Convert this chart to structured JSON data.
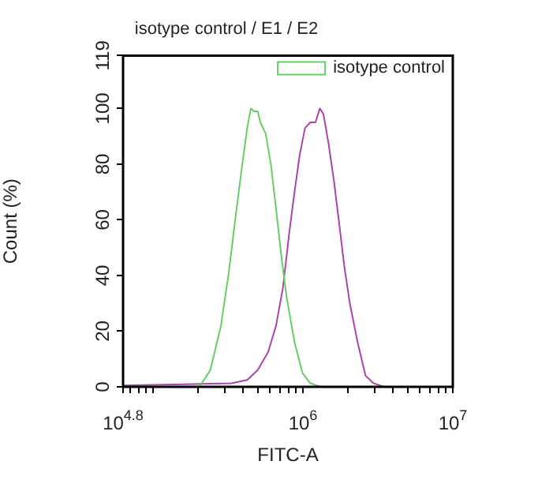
{
  "chart_data": {
    "type": "line",
    "title": "isotype control / E1 / E2",
    "xlabel": "FITC-A",
    "ylabel": "Count (%)",
    "log": "x",
    "grid": false,
    "legend": "top right",
    "marker": "none",
    "line_style": "solid",
    "xlim": [
      63096,
      10000000
    ],
    "xticks": [
      {
        "value": 63096,
        "label": "10$^{4.8}$"
      },
      {
        "value": 70000,
        "label": null
      },
      {
        "value": 80000,
        "label": null
      },
      {
        "value": 90000,
        "label": null
      },
      {
        "value": 100000,
        "label": null
      },
      {
        "value": 200000,
        "label": null
      },
      {
        "value": 300000,
        "label": null
      },
      {
        "value": 400000,
        "label": null
      },
      {
        "value": 500000,
        "label": null
      },
      {
        "value": 600000,
        "label": null
      },
      {
        "value": 700000,
        "label": null
      },
      {
        "value": 800000,
        "label": null
      },
      {
        "value": 900000,
        "label": null
      },
      {
        "value": 1000000,
        "label": "10$^{6}$"
      },
      {
        "value": 2000000,
        "label": null
      },
      {
        "value": 3000000,
        "label": null
      },
      {
        "value": 4000000,
        "label": null
      },
      {
        "value": 5000000,
        "label": null
      },
      {
        "value": 6000000,
        "label": null
      },
      {
        "value": 7000000,
        "label": null
      },
      {
        "value": 8000000,
        "label": null
      },
      {
        "value": 9000000,
        "label": null
      },
      {
        "value": 10000000,
        "label": "10$^{7}$"
      }
    ],
    "ylim": [
      0,
      119
    ],
    "yticks": [
      0,
      20,
      40,
      60,
      80,
      100,
      119
    ],
    "series": [
      {
        "name": "isotype control",
        "color": "#66cc66",
        "x": [
          206000,
          241000,
          284000,
          320000,
          361000,
          392000,
          425000,
          450000,
          472000,
          499000,
          520000,
          564000,
          611000,
          662000,
          718000,
          780000,
          879000,
          993000,
          1119000,
          1315000
        ],
        "values": [
          0.4,
          6,
          22,
          41,
          64,
          79,
          93,
          100,
          99,
          99,
          95,
          91,
          80,
          64,
          47,
          32,
          16,
          5,
          1.3,
          0
        ]
      },
      {
        "color": "#aa44aa",
        "x": [
          63096,
          189000,
          333000,
          425000,
          499000,
          586000,
          662000,
          735000,
          809000,
          879000,
          953000,
          1033000,
          1119000,
          1213000,
          1297000,
          1371000,
          1486000,
          1611000,
          1746000,
          1892000,
          2056000,
          2317000,
          2618000,
          2958000,
          3467000
        ],
        "values": [
          0.5,
          1,
          1.3,
          2.5,
          6,
          12.5,
          22,
          35.5,
          55,
          70,
          83.5,
          93,
          95,
          95,
          100,
          98,
          87,
          74,
          58.6,
          43,
          30,
          16,
          4,
          1.3,
          0
        ]
      }
    ]
  }
}
